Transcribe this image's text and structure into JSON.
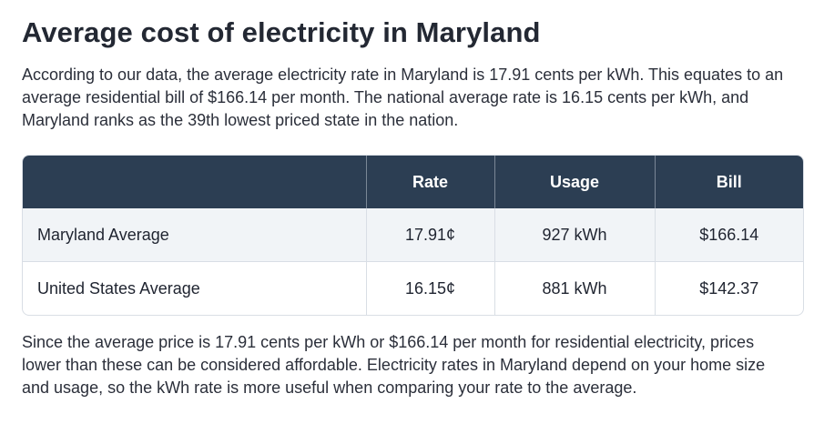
{
  "heading": "Average cost of electricity in Maryland",
  "intro_text": "According to our data, the average electricity rate in Maryland is 17.91 cents per kWh. This equates to an average residential bill of $166.14 per month. The national average rate is 16.15 cents per kWh, and Maryland ranks as the 39th lowest priced state in the nation.",
  "table": {
    "headers": [
      "",
      "Rate",
      "Usage",
      "Bill"
    ],
    "rows": [
      {
        "label": "Maryland Average",
        "rate": "17.91¢",
        "usage": "927 kWh",
        "bill": "$166.14"
      },
      {
        "label": "United States Average",
        "rate": "16.15¢",
        "usage": "881 kWh",
        "bill": "$142.37"
      }
    ]
  },
  "outro_text": "Since the average price is 17.91 cents per kWh or $166.14 per month for residential electricity, prices lower than these can be considered affordable. Electricity rates in Maryland depend on your home size and usage, so the kWh rate is more useful when comparing your rate to the average.",
  "colors": {
    "header_bg": "#2c3e53",
    "header_text": "#ffffff",
    "striped_row_bg": "#f1f4f7",
    "border": "#d9dee5"
  }
}
